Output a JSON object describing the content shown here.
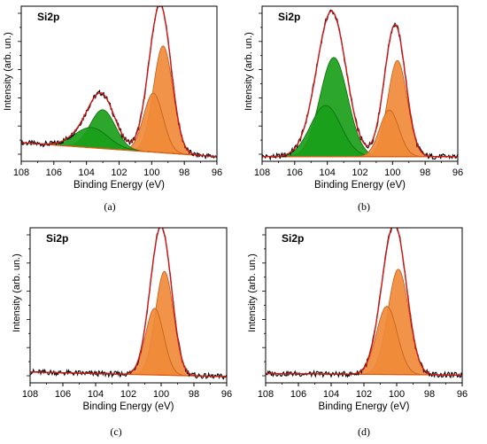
{
  "colors": {
    "spectrum": "#000000",
    "envelope": "#d01818",
    "baseline": "#e05a10",
    "green_fill": "#1aa01a",
    "green_dark": "#0d6a10",
    "orange_fill": "#f08a3a",
    "orange_dark": "#c35e1a"
  },
  "chart_data": [
    {
      "type": "area",
      "panel_label": "(a)",
      "title": "Si2p",
      "xlabel": "Binding Energy (eV)",
      "ylabel": "Intensity (arb. un.)",
      "xlim": [
        108,
        96
      ],
      "x_ticks": [
        "108",
        "106",
        "104",
        "102",
        "100",
        "98",
        "96"
      ],
      "ylim": [
        0,
        1
      ],
      "baseline": [
        0.12,
        0.03
      ],
      "components": [
        {
          "group": "oxide",
          "center": 103.7,
          "amplitude": 0.13,
          "fwhm": 2.4
        },
        {
          "group": "oxide",
          "center": 103.0,
          "amplitude": 0.25,
          "fwhm": 1.8
        },
        {
          "group": "silicon",
          "center": 99.9,
          "amplitude": 0.38,
          "fwhm": 1.4
        },
        {
          "group": "silicon",
          "center": 99.3,
          "amplitude": 0.69,
          "fwhm": 1.4
        }
      ],
      "peak_intensity": 0.93
    },
    {
      "type": "area",
      "panel_label": "(b)",
      "title": "Si2p",
      "xlabel": "Binding Energy (eV)",
      "ylabel": "Intensity (arb. un.)",
      "xlim": [
        108,
        96
      ],
      "x_ticks": [
        "108",
        "106",
        "104",
        "102",
        "100",
        "98",
        "96"
      ],
      "ylim": [
        0,
        1
      ],
      "baseline": [
        0.03,
        0.03
      ],
      "components": [
        {
          "group": "oxide",
          "center": 104.1,
          "amplitude": 0.33,
          "fwhm": 2.2
        },
        {
          "group": "oxide",
          "center": 103.6,
          "amplitude": 0.64,
          "fwhm": 2.0
        },
        {
          "group": "silicon",
          "center": 100.2,
          "amplitude": 0.3,
          "fwhm": 1.4
        },
        {
          "group": "silicon",
          "center": 99.7,
          "amplitude": 0.62,
          "fwhm": 1.4
        }
      ],
      "peak_intensity": 0.92
    },
    {
      "type": "area",
      "panel_label": "(c)",
      "title": "Si2p",
      "xlabel": "Binding Energy (eV)",
      "ylabel": "Intensity (arb. un.)",
      "xlim": [
        108,
        96
      ],
      "x_ticks": [
        "108",
        "106",
        "104",
        "102",
        "100",
        "98",
        "96"
      ],
      "ylim": [
        0,
        1
      ],
      "baseline": [
        0.07,
        0.04
      ],
      "components": [
        {
          "group": "silicon",
          "center": 100.4,
          "amplitude": 0.43,
          "fwhm": 1.3
        },
        {
          "group": "silicon",
          "center": 99.8,
          "amplitude": 0.67,
          "fwhm": 1.3
        }
      ],
      "peak_intensity": 0.95
    },
    {
      "type": "area",
      "panel_label": "(d)",
      "title": "Si2p",
      "xlabel": "Binding Energy (eV)",
      "ylabel": "Intensity (arb. un.)",
      "xlim": [
        108,
        96
      ],
      "x_ticks": [
        "108",
        "106",
        "104",
        "102",
        "100",
        "98",
        "96"
      ],
      "ylim": [
        0,
        1
      ],
      "baseline": [
        0.06,
        0.05
      ],
      "components": [
        {
          "group": "silicon",
          "center": 100.6,
          "amplitude": 0.44,
          "fwhm": 1.5
        },
        {
          "group": "silicon",
          "center": 99.9,
          "amplitude": 0.68,
          "fwhm": 1.5
        }
      ],
      "peak_intensity": 0.97
    }
  ]
}
